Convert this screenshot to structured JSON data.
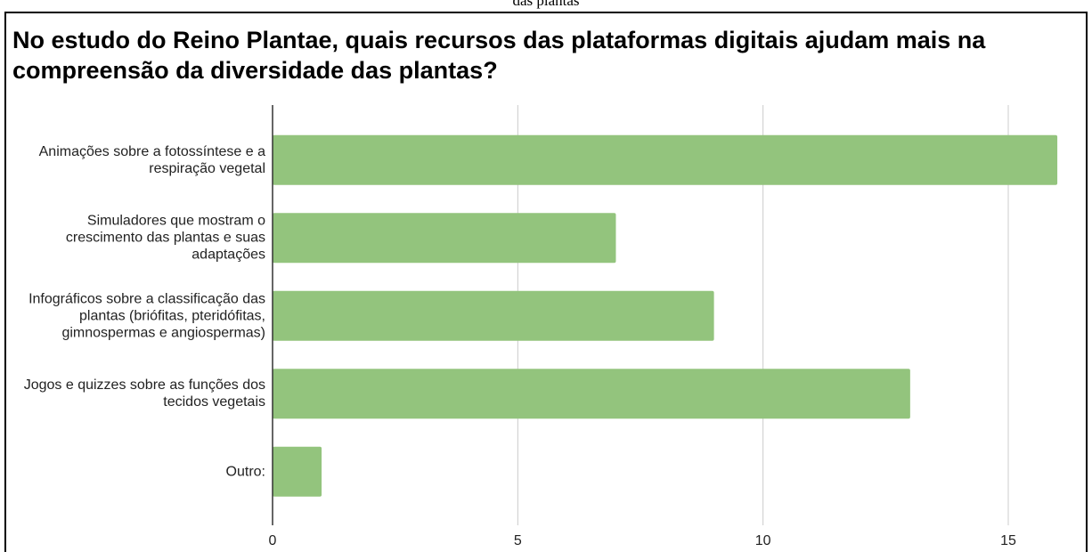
{
  "chart_data": {
    "type": "bar",
    "orientation": "horizontal",
    "caption": "das plantas",
    "title": "No estudo do Reino Plantae, quais recursos das plataformas digitais ajudam mais na compreensão da diversidade das plantas?",
    "categories": [
      "Animações sobre a fotossíntese e a respiração vegetal",
      "Simuladores que mostram o crescimento das plantas e suas adaptações",
      "Infográficos sobre a classificação das plantas (briófitas, pteridófitas, gimnospermas e angiospermas)",
      "Jogos e quizzes sobre as funções dos tecidos vegetais",
      "Outro:"
    ],
    "values": [
      16,
      7,
      9,
      13,
      1
    ],
    "color": "#93c47d",
    "xlim": [
      0,
      16.5
    ],
    "xticks": [
      0,
      5,
      10,
      15
    ],
    "grid": true
  }
}
